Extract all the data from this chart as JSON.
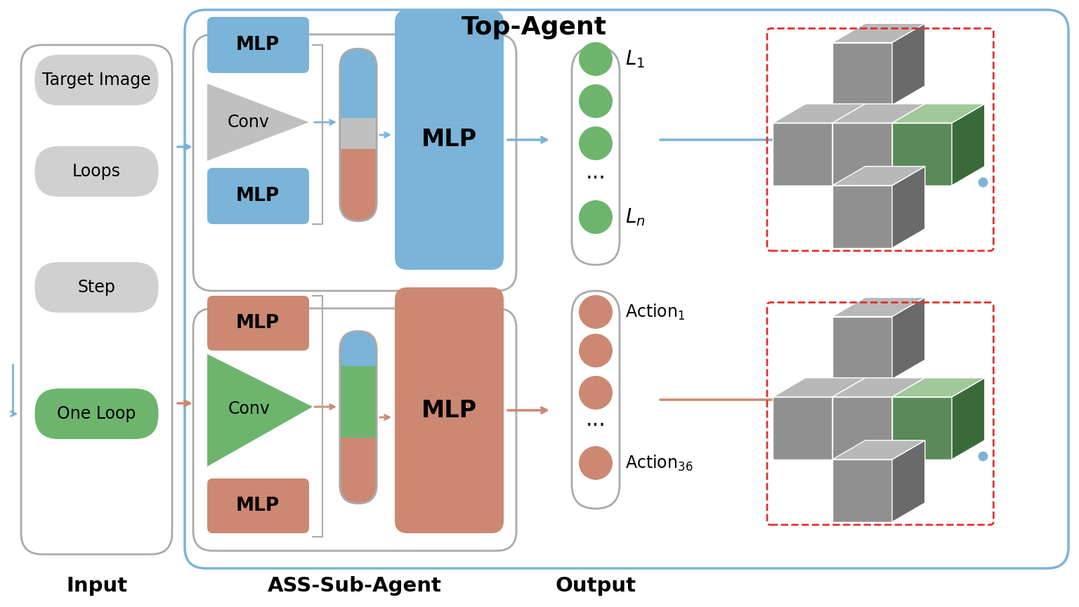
{
  "bg_color": "#ffffff",
  "title_top_agent": "Top-Agent",
  "label_input": "Input",
  "label_ass": "ASS-Sub-Agent",
  "label_output": "Output",
  "color_blue_mlp": "#7ab4d8",
  "color_salmon_mlp": "#cc8872",
  "color_green_conv": "#6db56d",
  "color_grey_conv": "#c0c0c0",
  "color_green_node": "#6db56d",
  "color_salmon_node": "#cc8872",
  "color_light_grey": "#d0d0d0",
  "arrow_blue": "#7ab4d8",
  "arrow_salmon": "#cc8872",
  "box_outline": "#aaaaaa",
  "dark_grey_3d": "#6a6a6a",
  "mid_grey_3d": "#909090",
  "light_grey_3d": "#b8b8b8",
  "green_3d": "#a0c898",
  "red_dashed": "#e03030"
}
